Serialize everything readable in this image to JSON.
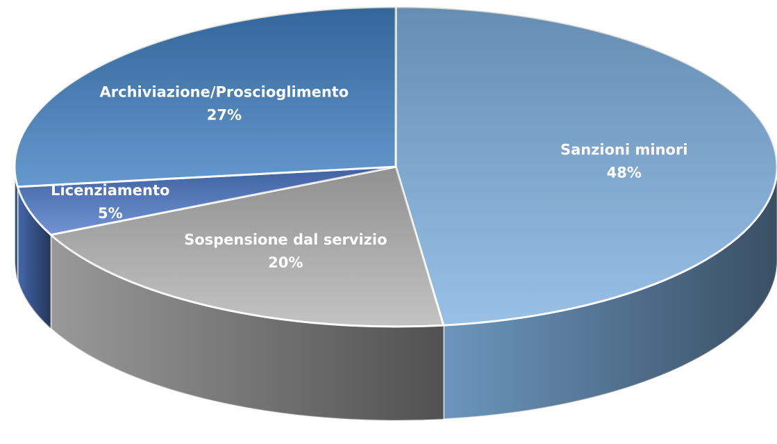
{
  "chart_data": {
    "type": "pie",
    "categories": [
      "Sanzioni minori",
      "Sospensione dal servizio",
      "Licenziamento",
      "Archiviazione/Proscioglimento"
    ],
    "values": [
      48,
      20,
      5,
      27
    ],
    "value_labels": [
      "48%",
      "20%",
      "5%",
      "27%"
    ],
    "colors": [
      "#7fb0df",
      "#b4b4b4",
      "#4f79c9",
      "#3f80c0"
    ]
  }
}
